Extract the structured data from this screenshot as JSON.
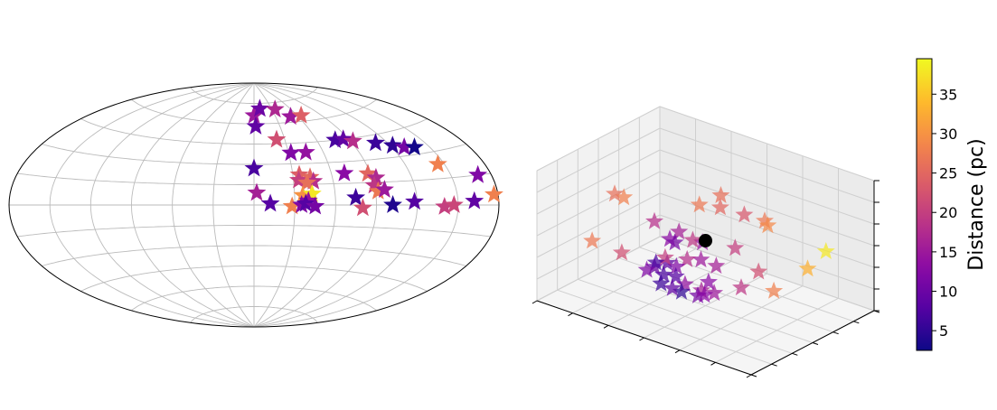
{
  "chart_data": [
    {
      "type": "scatter",
      "projection": "aitoff",
      "xlabel": "",
      "ylabel": "",
      "grid": true,
      "marker": "star",
      "colormap": "plasma",
      "color_by": "distance_pc",
      "points": [
        {
          "lon": 0,
          "lat": 66,
          "distance_pc": 15
        },
        {
          "lon": 10,
          "lat": 71,
          "distance_pc": 10
        },
        {
          "lon": 35,
          "lat": 70,
          "distance_pc": 17
        },
        {
          "lon": 50,
          "lat": 64,
          "distance_pc": 15
        },
        {
          "lon": 65,
          "lat": 64,
          "distance_pc": 24
        },
        {
          "lon": 2,
          "lat": 58,
          "distance_pc": 9
        },
        {
          "lon": 22,
          "lat": 48,
          "distance_pc": 22
        },
        {
          "lon": 32,
          "lat": 38,
          "distance_pc": 12
        },
        {
          "lon": 45,
          "lat": 38,
          "distance_pc": 14
        },
        {
          "lon": 77,
          "lat": 45,
          "distance_pc": 7
        },
        {
          "lon": 85,
          "lat": 45,
          "distance_pc": 9
        },
        {
          "lon": 92,
          "lat": 43,
          "distance_pc": 18
        },
        {
          "lon": 110,
          "lat": 40,
          "distance_pc": 6
        },
        {
          "lon": 122,
          "lat": 37,
          "distance_pc": 5
        },
        {
          "lon": 130,
          "lat": 35,
          "distance_pc": 11
        },
        {
          "lon": 138,
          "lat": 34,
          "distance_pc": 3
        },
        {
          "lon": 0,
          "lat": 27,
          "distance_pc": 7
        },
        {
          "lon": 35,
          "lat": 22,
          "distance_pc": 24
        },
        {
          "lon": 43,
          "lat": 20,
          "distance_pc": 25
        },
        {
          "lon": 34,
          "lat": 18,
          "distance_pc": 20
        },
        {
          "lon": 45,
          "lat": 17,
          "distance_pc": 18
        },
        {
          "lon": 40,
          "lat": 16,
          "distance_pc": 26
        },
        {
          "lon": 70,
          "lat": 22,
          "distance_pc": 13
        },
        {
          "lon": 88,
          "lat": 21,
          "distance_pc": 25
        },
        {
          "lon": 93,
          "lat": 18,
          "distance_pc": 17
        },
        {
          "lon": 145,
          "lat": 23,
          "distance_pc": 28
        },
        {
          "lon": 170,
          "lat": 15,
          "distance_pc": 12
        },
        {
          "lon": 90,
          "lat": 13,
          "distance_pc": 19
        },
        {
          "lon": 92,
          "lat": 9,
          "distance_pc": 27
        },
        {
          "lon": 97,
          "lat": 10,
          "distance_pc": 15
        },
        {
          "lon": 2,
          "lat": 9,
          "distance_pc": 16
        },
        {
          "lon": 36,
          "lat": 7,
          "distance_pc": 30
        },
        {
          "lon": 43,
          "lat": 8,
          "distance_pc": 38
        },
        {
          "lon": 40,
          "lat": 3,
          "distance_pc": 14
        },
        {
          "lon": 75,
          "lat": 5,
          "distance_pc": 6
        },
        {
          "lon": 118,
          "lat": 2,
          "distance_pc": 8
        },
        {
          "lon": 177,
          "lat": 5,
          "distance_pc": 28
        },
        {
          "lon": 12,
          "lat": 1,
          "distance_pc": 8
        },
        {
          "lon": 28,
          "lat": -1,
          "distance_pc": 28
        },
        {
          "lon": 35,
          "lat": 0,
          "distance_pc": 12
        },
        {
          "lon": 38,
          "lat": 1,
          "distance_pc": 8
        },
        {
          "lon": 45,
          "lat": -1,
          "distance_pc": 11
        },
        {
          "lon": 80,
          "lat": -2,
          "distance_pc": 22
        },
        {
          "lon": 102,
          "lat": 0,
          "distance_pc": 4
        },
        {
          "lon": 140,
          "lat": -1,
          "distance_pc": 20
        },
        {
          "lon": 147,
          "lat": 0,
          "distance_pc": 21
        },
        {
          "lon": 162,
          "lat": 2,
          "distance_pc": 9
        }
      ]
    },
    {
      "type": "scatter",
      "projection": "3d",
      "xlabel": "",
      "ylabel": "",
      "zlabel": "",
      "grid": true,
      "marker": "star",
      "colormap": "plasma",
      "color_by": "distance_pc",
      "origin_marker": {
        "x": 0,
        "y": 0,
        "z": 0,
        "color": "#000000"
      },
      "xlim": [
        -30,
        30
      ],
      "ylim": [
        -30,
        30
      ],
      "zlim": [
        -30,
        30
      ],
      "points": [
        {
          "x": -22,
          "y": -6,
          "z": 12,
          "distance_pc": 26
        },
        {
          "x": -20,
          "y": -5,
          "z": 11,
          "distance_pc": 28
        },
        {
          "x": 0,
          "y": -3,
          "z": 18,
          "distance_pc": 27
        },
        {
          "x": 2,
          "y": 4,
          "z": 20,
          "distance_pc": 26
        },
        {
          "x": 3,
          "y": 2,
          "z": 16,
          "distance_pc": 25
        },
        {
          "x": 8,
          "y": 5,
          "z": 14,
          "distance_pc": 23
        },
        {
          "x": 12,
          "y": 8,
          "z": 12,
          "distance_pc": 27
        },
        {
          "x": 14,
          "y": 6,
          "z": 12,
          "distance_pc": 29
        },
        {
          "x": 28,
          "y": 10,
          "z": 6,
          "distance_pc": 38
        },
        {
          "x": 20,
          "y": 15,
          "z": -9,
          "distance_pc": 33
        },
        {
          "x": -12,
          "y": -4,
          "z": 4,
          "distance_pc": 18
        },
        {
          "x": -8,
          "y": 1,
          "z": -1,
          "distance_pc": 16
        },
        {
          "x": -3,
          "y": -1,
          "z": -1,
          "distance_pc": 19
        },
        {
          "x": -2,
          "y": 2,
          "z": -3,
          "distance_pc": 14
        },
        {
          "x": 6,
          "y": 4,
          "z": -2,
          "distance_pc": 20
        },
        {
          "x": -10,
          "y": 0,
          "z": -5,
          "distance_pc": 13
        },
        {
          "x": -8,
          "y": -1,
          "z": -5,
          "distance_pc": 11
        },
        {
          "x": -4,
          "y": -2,
          "z": -10,
          "distance_pc": 18
        },
        {
          "x": -9,
          "y": -4,
          "z": -11,
          "distance_pc": 20
        },
        {
          "x": -3,
          "y": 3,
          "z": -12,
          "distance_pc": 15
        },
        {
          "x": 3,
          "y": 0,
          "z": -10,
          "distance_pc": 16
        },
        {
          "x": 12,
          "y": 5,
          "z": -10,
          "distance_pc": 22
        },
        {
          "x": -26,
          "y": -10,
          "z": -10,
          "distance_pc": 27
        },
        {
          "x": -20,
          "y": -6,
          "z": -14,
          "distance_pc": 22
        },
        {
          "x": -11,
          "y": -5,
          "z": -14,
          "distance_pc": 7
        },
        {
          "x": -9,
          "y": -3,
          "z": -14,
          "distance_pc": 9
        },
        {
          "x": -7,
          "y": -2,
          "z": -15,
          "distance_pc": 12
        },
        {
          "x": -12,
          "y": -4,
          "z": -17,
          "distance_pc": 10
        },
        {
          "x": -13,
          "y": -6,
          "z": -18,
          "distance_pc": 12
        },
        {
          "x": -6,
          "y": -4,
          "z": -18,
          "distance_pc": 8
        },
        {
          "x": 2,
          "y": -2,
          "z": -17,
          "distance_pc": 13
        },
        {
          "x": 10,
          "y": 0,
          "z": -16,
          "distance_pc": 19
        },
        {
          "x": 18,
          "y": 2,
          "z": -14,
          "distance_pc": 28
        },
        {
          "x": -10,
          "y": -3,
          "z": -20,
          "distance_pc": 7
        },
        {
          "x": -9,
          "y": -6,
          "z": -22,
          "distance_pc": 6
        },
        {
          "x": -4,
          "y": -3,
          "z": -21,
          "distance_pc": 14
        },
        {
          "x": 0,
          "y": -2,
          "z": -22,
          "distance_pc": 16
        },
        {
          "x": 2,
          "y": -4,
          "z": -22,
          "distance_pc": 13
        },
        {
          "x": 3,
          "y": -1,
          "z": -22,
          "distance_pc": 15
        },
        {
          "x": -7,
          "y": -4,
          "z": -24,
          "distance_pc": 9
        },
        {
          "x": -5,
          "y": -3,
          "z": -25,
          "distance_pc": 5
        },
        {
          "x": -1,
          "y": -2,
          "z": -25,
          "distance_pc": 11
        }
      ]
    }
  ],
  "colorbar": {
    "label": "Distance (pc)",
    "colormap": "plasma",
    "min": 2.5,
    "max": 39.5,
    "ticks": [
      5,
      10,
      15,
      20,
      25,
      30,
      35
    ],
    "tick_labels": [
      "5",
      "10",
      "15",
      "20",
      "25",
      "30",
      "35"
    ]
  }
}
